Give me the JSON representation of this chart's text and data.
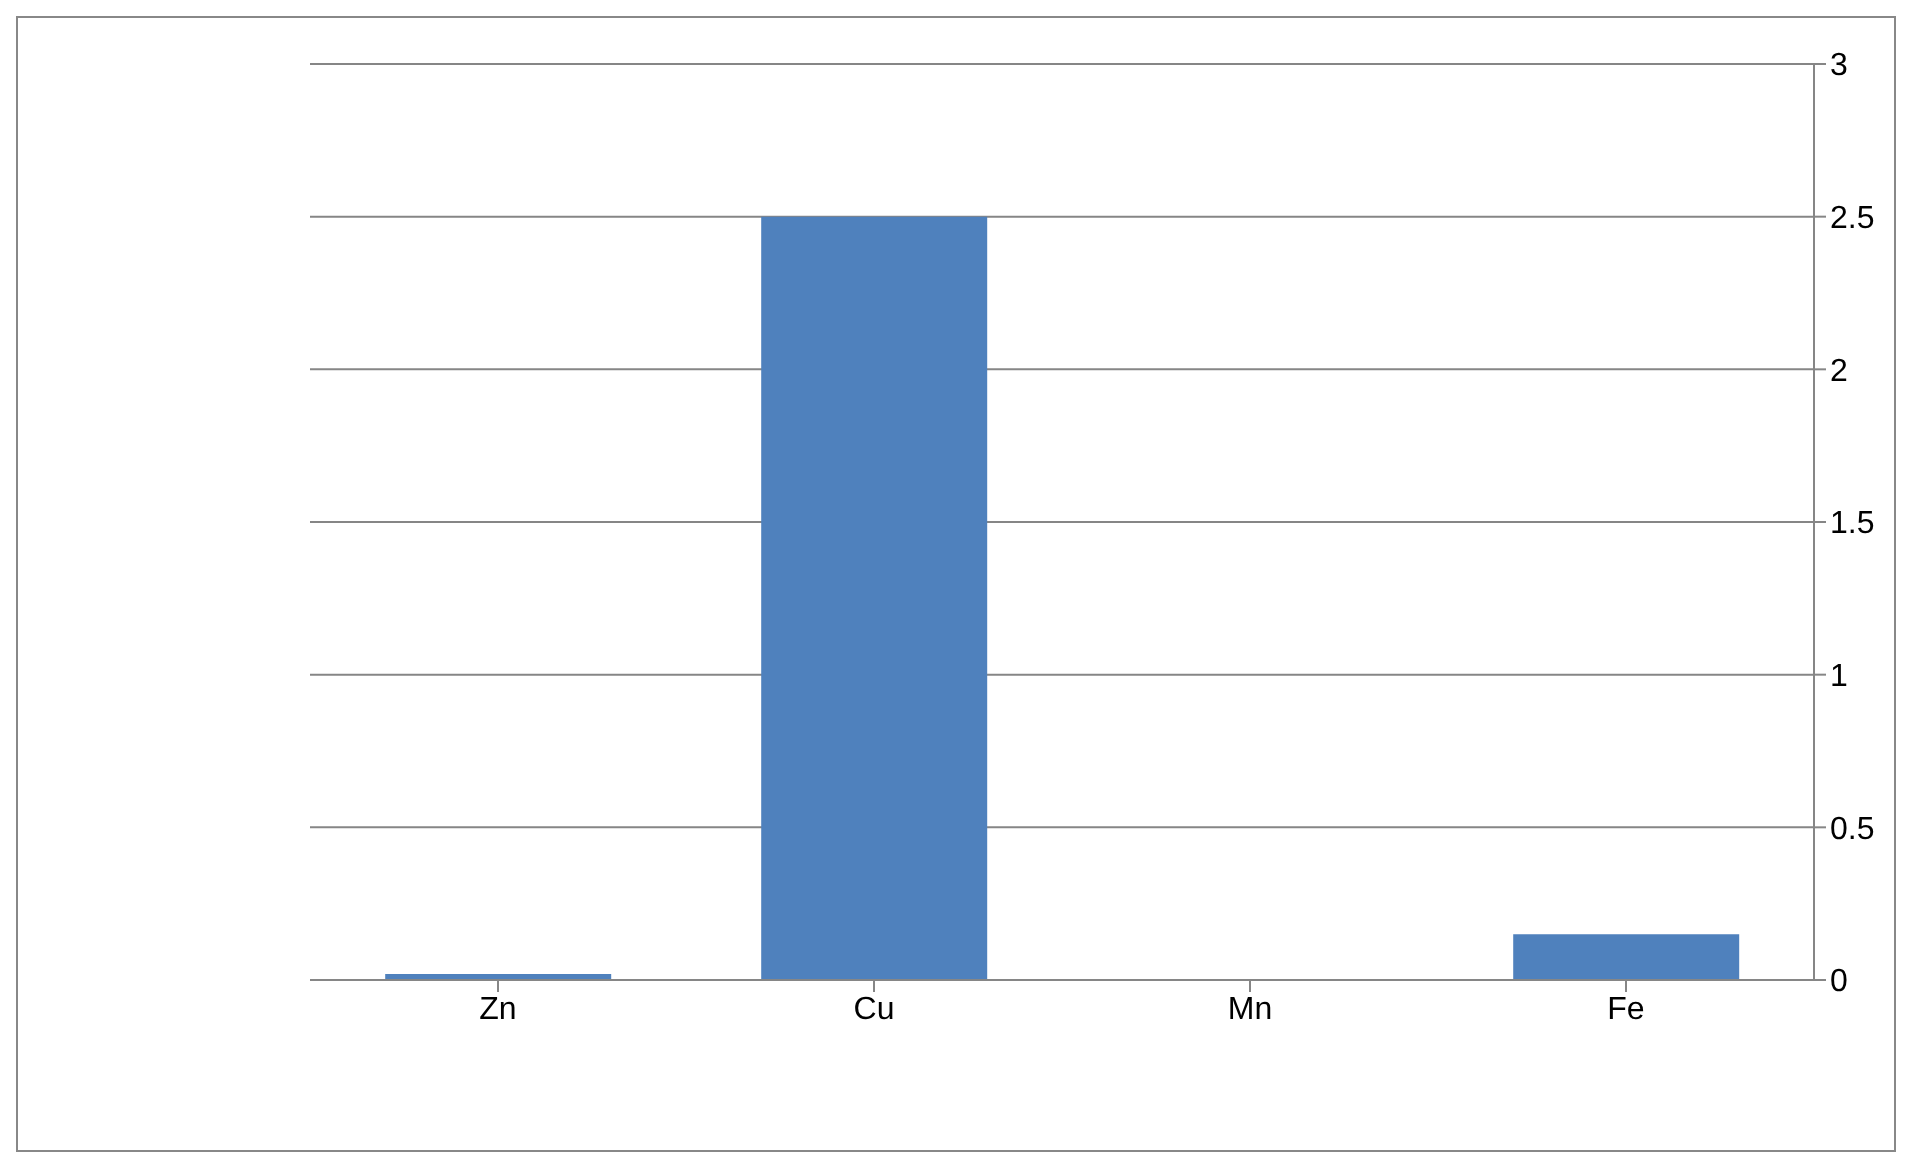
{
  "chart_data": {
    "type": "bar",
    "categories": [
      "Zn",
      "Cu",
      "Mn",
      "Fe"
    ],
    "values": [
      0.02,
      2.5,
      0,
      0.15
    ],
    "color": "#4f81bd",
    "ylim": [
      0,
      3
    ],
    "yticks": [
      0,
      0.5,
      1,
      1.5,
      2,
      2.5,
      3
    ],
    "grid": "y"
  }
}
